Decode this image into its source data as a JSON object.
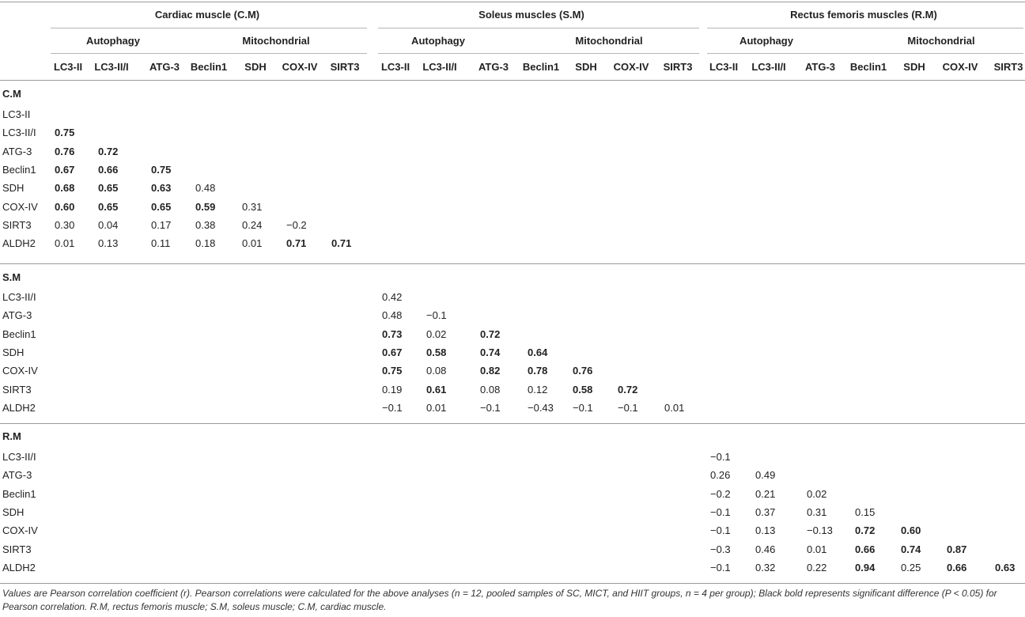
{
  "groups": [
    {
      "title": "Cardiac muscle (C.M)",
      "subgroups": [
        "Autophagy",
        "Mitochondrial"
      ]
    },
    {
      "title": "Soleus muscles (S.M)",
      "subgroups": [
        "Autophagy",
        "Mitochondrial"
      ]
    },
    {
      "title": "Rectus femoris muscles (R.M)",
      "subgroups": [
        "Autophagy",
        "Mitochondrial"
      ]
    }
  ],
  "columns": [
    "LC3-II",
    "LC3-II/I",
    "ATG-3",
    "Beclin1",
    "SDH",
    "COX-IV",
    "SIRT3"
  ],
  "sections": [
    {
      "label": "C.M",
      "rows": [
        {
          "label": "LC3-II",
          "cells": []
        },
        {
          "label": "LC3-II/I",
          "cells": [
            {
              "v": "0.75",
              "b": true
            }
          ]
        },
        {
          "label": "ATG-3",
          "cells": [
            {
              "v": "0.76",
              "b": true
            },
            {
              "v": "0.72",
              "b": true
            }
          ]
        },
        {
          "label": "Beclin1",
          "cells": [
            {
              "v": "0.67",
              "b": true
            },
            {
              "v": "0.66",
              "b": true
            },
            {
              "v": "0.75",
              "b": true
            }
          ]
        },
        {
          "label": "SDH",
          "cells": [
            {
              "v": "0.68",
              "b": true
            },
            {
              "v": "0.65",
              "b": true
            },
            {
              "v": "0.63",
              "b": true
            },
            {
              "v": "0.48",
              "b": false
            }
          ]
        },
        {
          "label": "COX-IV",
          "cells": [
            {
              "v": "0.60",
              "b": true
            },
            {
              "v": "0.65",
              "b": true
            },
            {
              "v": "0.65",
              "b": true
            },
            {
              "v": "0.59",
              "b": true
            },
            {
              "v": "0.31",
              "b": false
            }
          ]
        },
        {
          "label": "SIRT3",
          "cells": [
            {
              "v": "0.30",
              "b": false
            },
            {
              "v": "0.04",
              "b": false
            },
            {
              "v": "0.17",
              "b": false
            },
            {
              "v": "0.38",
              "b": false
            },
            {
              "v": "0.24",
              "b": false
            },
            {
              "v": "−0.2",
              "b": false
            }
          ]
        },
        {
          "label": "ALDH2",
          "cells": [
            {
              "v": "0.01",
              "b": false
            },
            {
              "v": "0.13",
              "b": false
            },
            {
              "v": "0.11",
              "b": false
            },
            {
              "v": "0.18",
              "b": false
            },
            {
              "v": "0.01",
              "b": false
            },
            {
              "v": "0.71",
              "b": true
            },
            {
              "v": "0.71",
              "b": true
            }
          ]
        }
      ]
    },
    {
      "label": "S.M",
      "rows": [
        {
          "label": "LC3-II/I",
          "cells": [
            {
              "v": "0.42",
              "b": false
            }
          ]
        },
        {
          "label": "ATG-3",
          "cells": [
            {
              "v": "0.48",
              "b": false
            },
            {
              "v": "−0.1",
              "b": false
            }
          ]
        },
        {
          "label": "Beclin1",
          "cells": [
            {
              "v": "0.73",
              "b": true
            },
            {
              "v": "0.02",
              "b": false
            },
            {
              "v": "0.72",
              "b": true
            }
          ]
        },
        {
          "label": "SDH",
          "cells": [
            {
              "v": "0.67",
              "b": true
            },
            {
              "v": "0.58",
              "b": true
            },
            {
              "v": "0.74",
              "b": true
            },
            {
              "v": "0.64",
              "b": true
            }
          ]
        },
        {
          "label": "COX-IV",
          "cells": [
            {
              "v": "0.75",
              "b": true
            },
            {
              "v": "0.08",
              "b": false
            },
            {
              "v": "0.82",
              "b": true
            },
            {
              "v": "0.78",
              "b": true
            },
            {
              "v": "0.76",
              "b": true
            }
          ]
        },
        {
          "label": "SIRT3",
          "cells": [
            {
              "v": "0.19",
              "b": false
            },
            {
              "v": "0.61",
              "b": true
            },
            {
              "v": "0.08",
              "b": false
            },
            {
              "v": "0.12",
              "b": false
            },
            {
              "v": "0.58",
              "b": true
            },
            {
              "v": "0.72",
              "b": true
            }
          ]
        },
        {
          "label": "ALDH2",
          "cells": [
            {
              "v": "−0.1",
              "b": false
            },
            {
              "v": "0.01",
              "b": false
            },
            {
              "v": "−0.1",
              "b": false
            },
            {
              "v": "−0.43",
              "b": false
            },
            {
              "v": "−0.1",
              "b": false
            },
            {
              "v": "−0.1",
              "b": false
            },
            {
              "v": "0.01",
              "b": false
            }
          ]
        }
      ]
    },
    {
      "label": "R.M",
      "rows": [
        {
          "label": "LC3-II/I",
          "cells": [
            {
              "v": "−0.1",
              "b": false
            }
          ]
        },
        {
          "label": "ATG-3",
          "cells": [
            {
              "v": "0.26",
              "b": false
            },
            {
              "v": "0.49",
              "b": false
            }
          ]
        },
        {
          "label": "Beclin1",
          "cells": [
            {
              "v": "−0.2",
              "b": false
            },
            {
              "v": "0.21",
              "b": false
            },
            {
              "v": "0.02",
              "b": false
            }
          ]
        },
        {
          "label": "SDH",
          "cells": [
            {
              "v": "−0.1",
              "b": false
            },
            {
              "v": "0.37",
              "b": false
            },
            {
              "v": "0.31",
              "b": false
            },
            {
              "v": "0.15",
              "b": false
            }
          ]
        },
        {
          "label": "COX-IV",
          "cells": [
            {
              "v": "−0.1",
              "b": false
            },
            {
              "v": "0.13",
              "b": false
            },
            {
              "v": "−0.13",
              "b": false
            },
            {
              "v": "0.72",
              "b": true
            },
            {
              "v": "0.60",
              "b": true
            }
          ]
        },
        {
          "label": "SIRT3",
          "cells": [
            {
              "v": "−0.3",
              "b": false
            },
            {
              "v": "0.46",
              "b": false
            },
            {
              "v": "0.01",
              "b": false
            },
            {
              "v": "0.66",
              "b": true
            },
            {
              "v": "0.74",
              "b": true
            },
            {
              "v": "0.87",
              "b": true
            }
          ]
        },
        {
          "label": "ALDH2",
          "cells": [
            {
              "v": "−0.1",
              "b": false
            },
            {
              "v": "0.32",
              "b": false
            },
            {
              "v": "0.22",
              "b": false
            },
            {
              "v": "0.94",
              "b": true
            },
            {
              "v": "0.25",
              "b": false
            },
            {
              "v": "0.66",
              "b": true
            },
            {
              "v": "0.63",
              "b": true
            }
          ]
        }
      ]
    }
  ],
  "footnote": "Values are Pearson correlation coefficient (r). Pearson correlations were calculated for the above analyses (n = 12, pooled samples of SC, MICT, and HIIT groups, n = 4 per group); Black bold represents significant difference (P < 0.05) for Pearson correlation. R.M, rectus femoris muscle; S.M, soleus muscle; C.M, cardiac muscle."
}
